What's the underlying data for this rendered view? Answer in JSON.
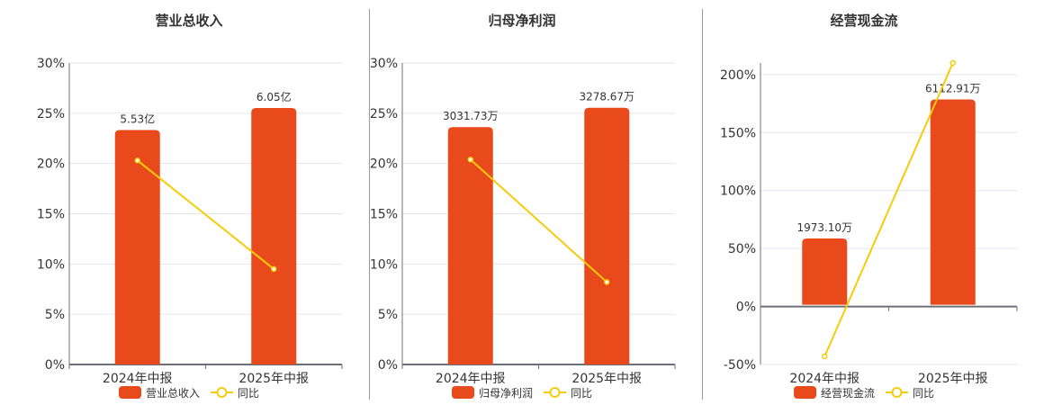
{
  "colors": {
    "bar": "#e84a1b",
    "line": "#f5cc0a",
    "grid": "#e3e6f0",
    "axis": "#6e7079",
    "text": "#333333"
  },
  "chart_data": [
    {
      "type": "bar+line",
      "title": "营业总收入",
      "categories": [
        "2024年中报",
        "2025年中报"
      ],
      "bar_series": {
        "name": "营业总收入",
        "values": [
          5.53,
          6.05
        ],
        "labels": [
          "5.53亿",
          "6.05亿"
        ],
        "unit": "亿",
        "axis_range": [
          0,
          7.11
        ]
      },
      "line_series": {
        "name": "同比",
        "values": [
          20.3,
          9.5
        ],
        "unit": "%"
      },
      "yaxis": {
        "range": [
          0,
          30
        ],
        "ticks": [
          0,
          5,
          10,
          15,
          20,
          25,
          30
        ],
        "tick_labels": [
          "0%",
          "5%",
          "10%",
          "15%",
          "20%",
          "25%",
          "30%"
        ]
      },
      "grid": true,
      "legend": "bottom-center"
    },
    {
      "type": "bar+line",
      "title": "归母净利润",
      "categories": [
        "2024年中报",
        "2025年中报"
      ],
      "bar_series": {
        "name": "归母净利润",
        "values": [
          3031.73,
          3278.67
        ],
        "labels": [
          "3031.73万",
          "3278.67万"
        ],
        "unit": "万",
        "axis_range": [
          0,
          3850
        ]
      },
      "line_series": {
        "name": "同比",
        "values": [
          20.4,
          8.2
        ],
        "unit": "%"
      },
      "yaxis": {
        "range": [
          0,
          30
        ],
        "ticks": [
          0,
          5,
          10,
          15,
          20,
          25,
          30
        ],
        "tick_labels": [
          "0%",
          "5%",
          "10%",
          "15%",
          "20%",
          "25%",
          "30%"
        ]
      },
      "grid": true,
      "legend": "bottom-center"
    },
    {
      "type": "bar+line",
      "title": "经营现金流",
      "categories": [
        "2024年中报",
        "2025年中报"
      ],
      "bar_series": {
        "name": "经营现金流",
        "values": [
          1973.1,
          6112.91
        ],
        "labels": [
          "1973.10万",
          "6112.91万"
        ],
        "unit": "万",
        "axis_range": [
          -1780,
          7200
        ]
      },
      "line_series": {
        "name": "同比",
        "values": [
          -43,
          210
        ],
        "unit": "%"
      },
      "yaxis": {
        "range": [
          -50,
          210
        ],
        "ticks": [
          -50,
          0,
          50,
          100,
          150,
          200
        ],
        "tick_labels": [
          "-50%",
          "0%",
          "50%",
          "100%",
          "150%",
          "200%"
        ]
      },
      "grid": true,
      "legend": "bottom-center"
    }
  ]
}
